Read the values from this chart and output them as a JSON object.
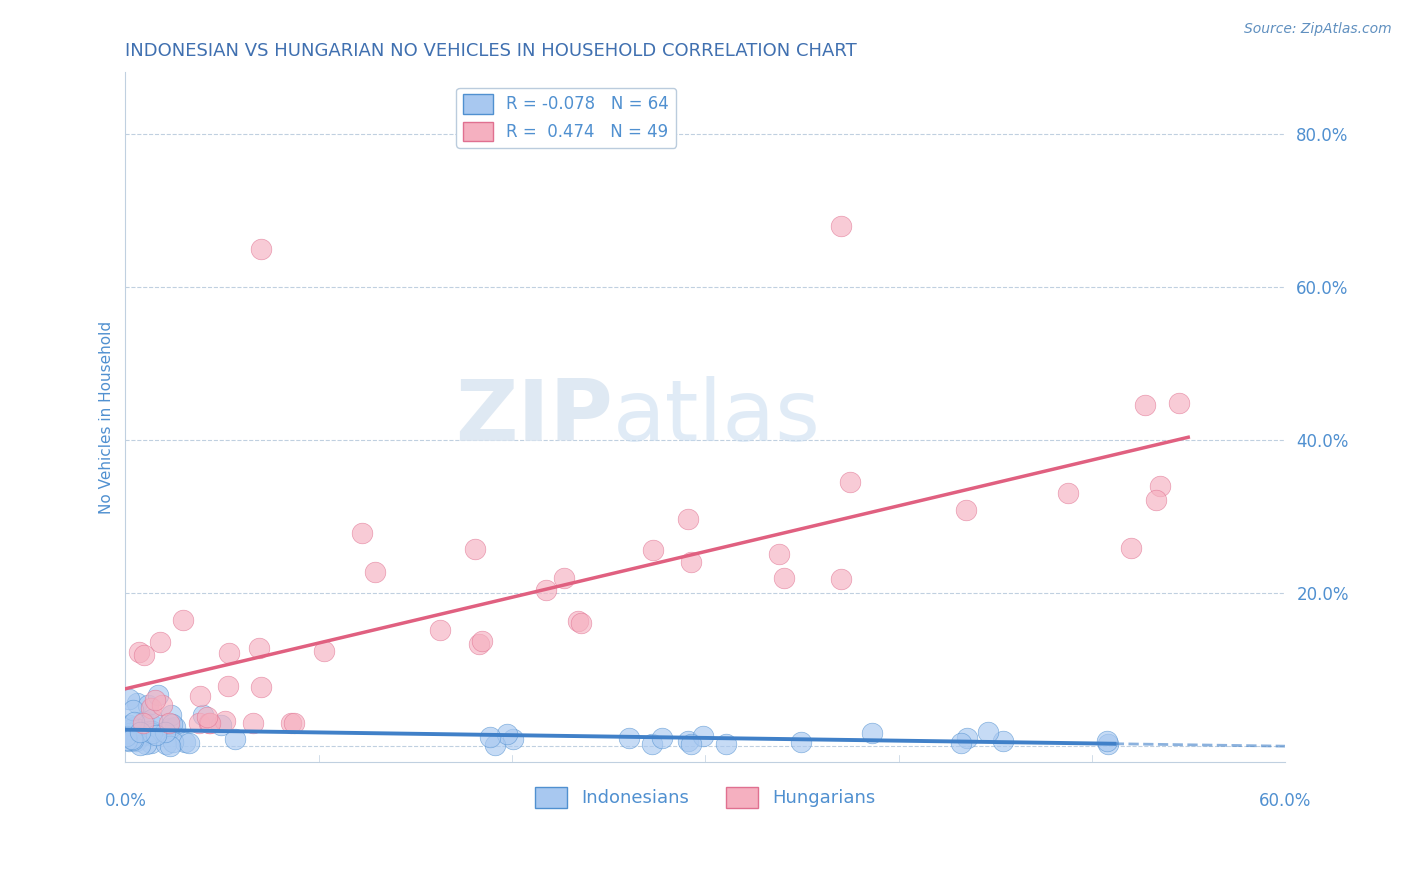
{
  "title": "INDONESIAN VS HUNGARIAN NO VEHICLES IN HOUSEHOLD CORRELATION CHART",
  "source": "Source: ZipAtlas.com",
  "ylabel": "No Vehicles in Household",
  "xlim": [
    0.0,
    0.6
  ],
  "ylim": [
    -0.02,
    0.88
  ],
  "R_indonesian": -0.078,
  "N_indonesian": 64,
  "R_hungarian": 0.474,
  "N_hungarian": 49,
  "color_indonesian": "#A8C8F0",
  "color_indonesian_edge": "#5090D0",
  "color_indonesian_line": "#4080C8",
  "color_hungarian": "#F5B0C0",
  "color_hungarian_edge": "#E07090",
  "color_hungarian_line": "#E06080",
  "color_grid": "#C0D0E0",
  "color_title": "#4070B0",
  "color_source": "#6090C0",
  "color_axis": "#5090D0",
  "background_color": "#FFFFFF",
  "watermark_zip": "ZIP",
  "watermark_atlas": "atlas",
  "ytick_positions": [
    0.0,
    0.2,
    0.4,
    0.6,
    0.8
  ],
  "ytick_labels": [
    "",
    "20.0%",
    "40.0%",
    "60.0%",
    "80.0%"
  ]
}
